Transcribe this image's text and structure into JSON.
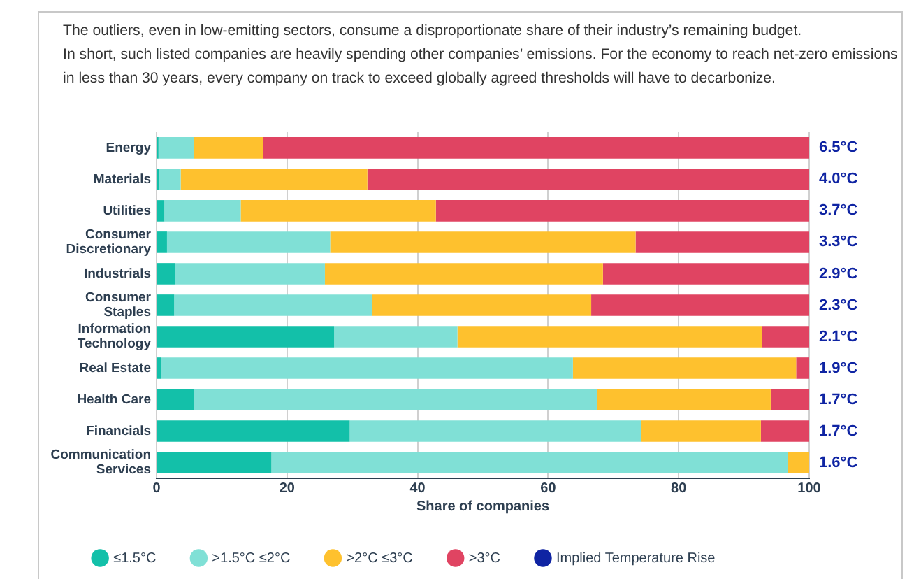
{
  "chart_data": {
    "type": "bar",
    "orientation": "horizontal",
    "stacked": true,
    "title": "The outliers, even in low-emitting sectors, consume a disproportionate share of their industry’s remaining budget.\nIn short, such listed companies are heavily spending other companies’ emissions. For the economy to reach net-zero emissions in less than 30 years, every company on track to exceed globally agreed thresholds will have to decarbonize.",
    "xlabel": "Share of companies",
    "categories": [
      "Energy",
      "Materials",
      "Utilities",
      "Consumer Discretionary",
      "Industrials",
      "Consumer Staples",
      "Information Technology",
      "Real Estate",
      "Health Care",
      "Financials",
      "Communication Services"
    ],
    "series": [
      {
        "name": "≤1.5°C",
        "color": "#13c0a9",
        "values": [
          0.3,
          0.4,
          1.2,
          1.6,
          2.8,
          2.7,
          27.2,
          0.7,
          5.7,
          29.6,
          17.6
        ]
      },
      {
        "name": ">1.5°C ≤2°C",
        "color": "#80e0d6",
        "values": [
          5.4,
          3.3,
          11.7,
          25,
          23,
          30.3,
          18.9,
          63.1,
          61.8,
          44.6,
          79.1
        ]
      },
      {
        "name": ">2°C ≤3°C",
        "color": "#fec12e",
        "values": [
          10.6,
          28.6,
          29.9,
          46.8,
          42.6,
          33.6,
          46.7,
          34.2,
          26.6,
          18.4,
          3.3
        ]
      },
      {
        "name": ">3°C",
        "color": "#e04462",
        "values": [
          83.7,
          67.7,
          57.2,
          26.6,
          31.6,
          33.4,
          7.2,
          2,
          5.9,
          7.4,
          0
        ]
      },
      {
        "name": "Implied Temperature Rise",
        "color": "#0f24a3",
        "values": [
          null,
          null,
          null,
          null,
          null,
          null,
          null,
          null,
          null,
          null,
          null
        ]
      }
    ],
    "annotations": [
      "6.5°C",
      "4.0°C",
      "3.7°C",
      "3.3°C",
      "2.9°C",
      "2.3°C",
      "2.1°C",
      "1.9°C",
      "1.7°C",
      "1.7°C",
      "1.6°C"
    ],
    "xlim": [
      0,
      100
    ],
    "xticks": [
      0,
      20,
      40,
      60,
      80,
      100
    ],
    "grid": "x",
    "legend": "bottom"
  }
}
